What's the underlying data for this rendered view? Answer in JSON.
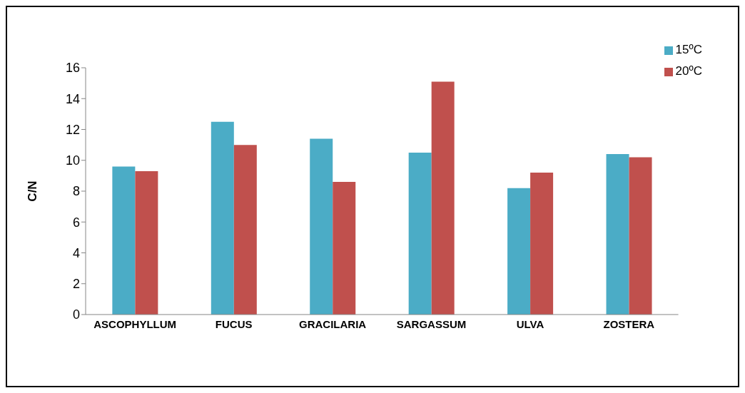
{
  "chart_data": {
    "type": "bar",
    "ylabel": "C/N",
    "categories": [
      "ASCOPHYLLUM",
      "FUCUS",
      "GRACILARIA",
      "SARGASSUM",
      "ULVA",
      "ZOSTERA"
    ],
    "series": [
      {
        "name": "15ºC",
        "color": "#4bacc6",
        "values": [
          9.6,
          12.5,
          11.4,
          10.5,
          8.2,
          10.4
        ]
      },
      {
        "name": "20ºC",
        "color": "#c0504d",
        "values": [
          9.3,
          11.0,
          8.6,
          15.1,
          9.2,
          10.2
        ]
      }
    ],
    "ylim": [
      0,
      16
    ],
    "yticks": [
      0,
      2,
      4,
      6,
      8,
      10,
      12,
      14,
      16
    ],
    "grid": false,
    "legend": "top right"
  }
}
